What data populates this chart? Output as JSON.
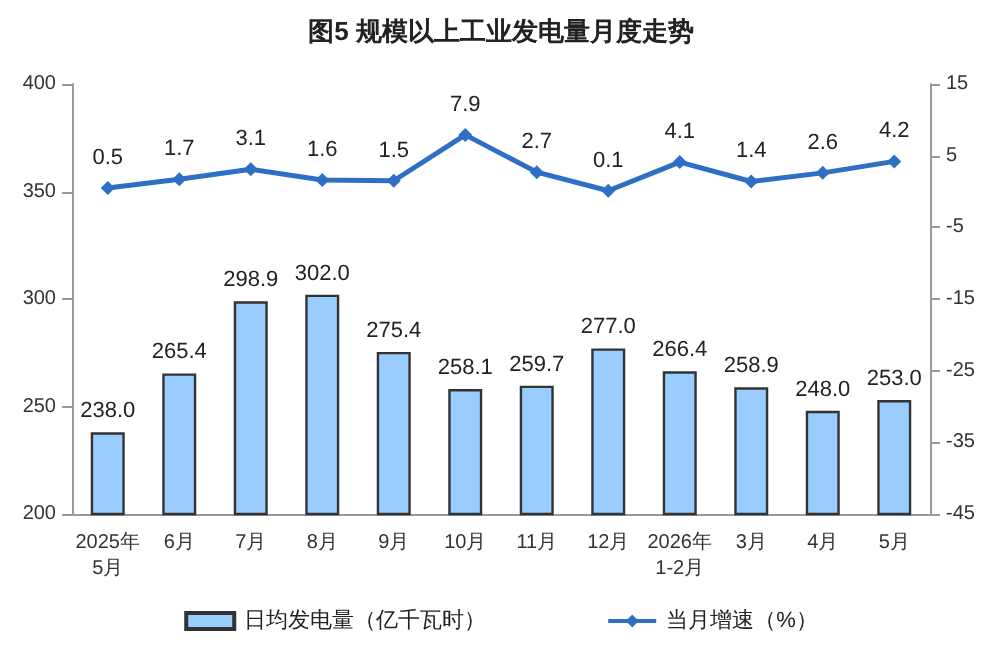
{
  "chart_data": {
    "type": "bar",
    "title": "图5 规模以上工业发电量月度走势",
    "categories": [
      "2025年\n5月",
      "6月",
      "7月",
      "8月",
      "9月",
      "10月",
      "11月",
      "12月",
      "2026年\n1-2月",
      "3月",
      "4月",
      "5月"
    ],
    "series": [
      {
        "name": "日均发电量（亿千瓦时）",
        "color": "#99ccff",
        "values": [
          238.0,
          265.4,
          298.9,
          302.0,
          275.4,
          258.1,
          259.7,
          277.0,
          266.4,
          258.9,
          248.0,
          253.0
        ],
        "value_labels": [
          "238.0",
          "265.4",
          "298.9",
          "302.0",
          "275.4",
          "258.1",
          "259.7",
          "277.0",
          "266.4",
          "258.9",
          "248.0",
          "253.0"
        ]
      },
      {
        "name": "当月增速（%）",
        "type": "line",
        "axis": "y2",
        "color": "#2e6fc4",
        "values": [
          0.5,
          1.7,
          3.1,
          1.6,
          1.5,
          7.9,
          2.7,
          0.1,
          4.1,
          1.4,
          2.6,
          4.2
        ],
        "value_labels": [
          "0.5",
          "1.7",
          "3.1",
          "1.6",
          "1.5",
          "7.9",
          "2.7",
          "0.1",
          "4.1",
          "1.4",
          "2.6",
          "4.2"
        ]
      }
    ],
    "ylim": [
      200,
      400
    ],
    "yticks": [
      200,
      250,
      300,
      350,
      400
    ],
    "y2lim": [
      -45,
      15
    ],
    "y2ticks": [
      -45,
      -35,
      -25,
      -15,
      -5,
      5,
      15
    ],
    "grid": false,
    "legend": "bottom",
    "marker": "diamond",
    "line_style": "solid"
  }
}
